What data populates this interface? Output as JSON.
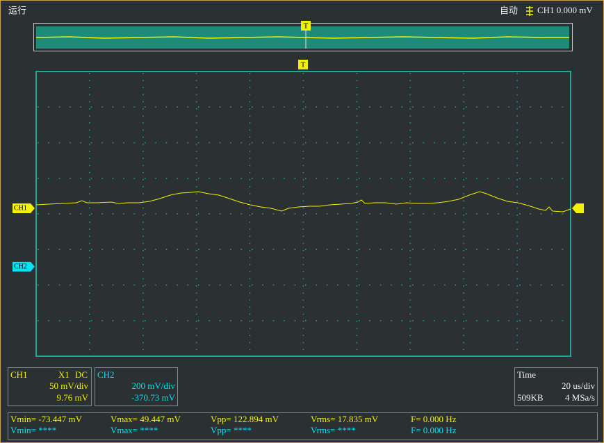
{
  "status": "运行",
  "trigger": {
    "mode": "自动",
    "readout": "CH1 0.000 mV"
  },
  "markers": {
    "trigger_top": "T",
    "trigger_main": "T",
    "ch1": "CH1",
    "ch2": "CH2"
  },
  "ch1": {
    "name": "CH1",
    "probe": "X1",
    "coupling": "DC",
    "scale": "50 mV/div",
    "offset": "9.76 mV"
  },
  "ch2": {
    "name": "CH2",
    "scale": "200 mV/div",
    "offset": "-370.73 mV"
  },
  "time": {
    "label": "Time",
    "scale": "20 us/div",
    "memory": "509KB",
    "rate": "4 MSa/s"
  },
  "measurements": [
    [
      "Vmin= -73.447 mV",
      "Vmax= 49.447 mV",
      "Vpp= 122.894 mV",
      "Vrms= 17.835 mV",
      "F= 0.000 Hz"
    ],
    [
      "Vmin= ****",
      "Vmax= ****",
      "Vpp= ****",
      "Vrms= ****",
      "F= 0.000 Hz"
    ]
  ]
}
